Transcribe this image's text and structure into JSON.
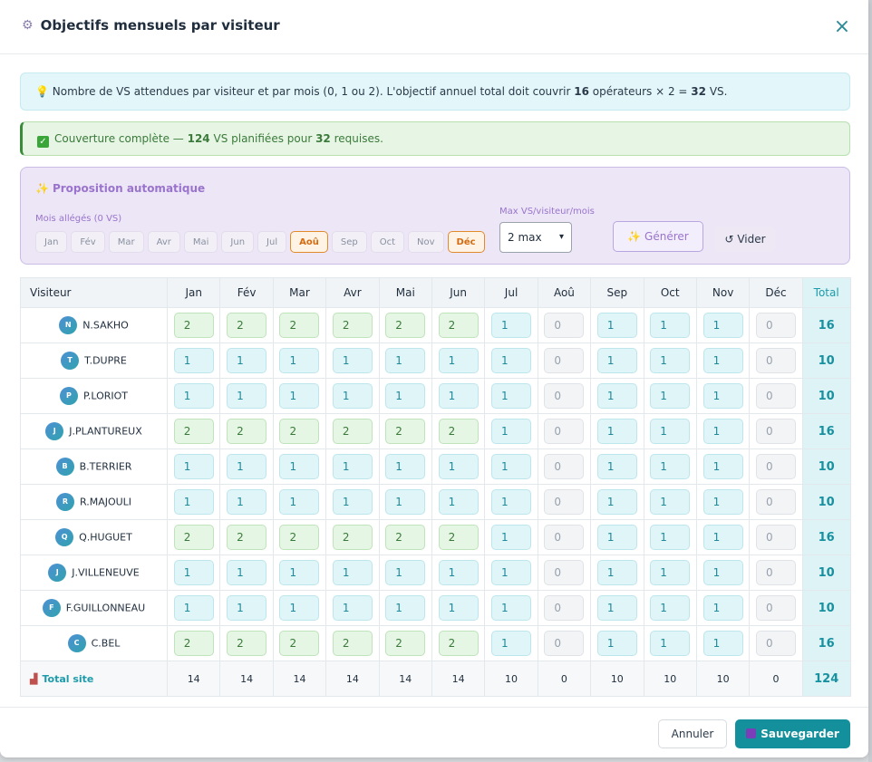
{
  "modal": {
    "title": "Objectifs mensuels par visiteur",
    "title_icon": "gear-icon",
    "close_label": "×"
  },
  "info": {
    "icon": "lightbulb-icon",
    "text_before": "Nombre de VS attendues par visiteur et par mois (0, 1 ou 2). L'objectif annuel total doit couvrir ",
    "operators": "16",
    "text_mid": " opérateurs × 2 = ",
    "required": "32",
    "text_after": " VS."
  },
  "coverage": {
    "icon": "checkmark-icon",
    "text_before": "Couverture complète — ",
    "planned": "124",
    "text_mid": " VS planifiées pour ",
    "required": "32",
    "text_after": " requises."
  },
  "auto": {
    "title": "Proposition automatique",
    "light_months_label": "Mois allégés (0 VS)",
    "months": [
      {
        "label": "Jan",
        "selected": false
      },
      {
        "label": "Fév",
        "selected": false
      },
      {
        "label": "Mar",
        "selected": false
      },
      {
        "label": "Avr",
        "selected": false
      },
      {
        "label": "Mai",
        "selected": false
      },
      {
        "label": "Jun",
        "selected": false
      },
      {
        "label": "Jul",
        "selected": false
      },
      {
        "label": "Aoû",
        "selected": true
      },
      {
        "label": "Sep",
        "selected": false
      },
      {
        "label": "Oct",
        "selected": false
      },
      {
        "label": "Nov",
        "selected": false
      },
      {
        "label": "Déc",
        "selected": true
      }
    ],
    "max_label": "Max VS/visiteur/mois",
    "max_value": "2 max",
    "generate_label": "✨ Générer",
    "clear_label": "↺ Vider"
  },
  "table": {
    "visitor_header": "Visiteur",
    "months": [
      "Jan",
      "Fév",
      "Mar",
      "Avr",
      "Mai",
      "Jun",
      "Jul",
      "Aoû",
      "Sep",
      "Oct",
      "Nov",
      "Déc"
    ],
    "total_header": "Total",
    "rows": [
      {
        "initial": "N",
        "name": "N.SAKHO",
        "values": [
          2,
          2,
          2,
          2,
          2,
          2,
          1,
          0,
          1,
          1,
          1,
          0
        ],
        "total": "16"
      },
      {
        "initial": "T",
        "name": "T.DUPRE",
        "values": [
          1,
          1,
          1,
          1,
          1,
          1,
          1,
          0,
          1,
          1,
          1,
          0
        ],
        "total": "10"
      },
      {
        "initial": "P",
        "name": "P.LORIOT",
        "values": [
          1,
          1,
          1,
          1,
          1,
          1,
          1,
          0,
          1,
          1,
          1,
          0
        ],
        "total": "10"
      },
      {
        "initial": "J",
        "name": "J.PLANTUREUX",
        "values": [
          2,
          2,
          2,
          2,
          2,
          2,
          1,
          0,
          1,
          1,
          1,
          0
        ],
        "total": "16"
      },
      {
        "initial": "B",
        "name": "B.TERRIER",
        "values": [
          1,
          1,
          1,
          1,
          1,
          1,
          1,
          0,
          1,
          1,
          1,
          0
        ],
        "total": "10"
      },
      {
        "initial": "R",
        "name": "R.MAJOULI",
        "values": [
          1,
          1,
          1,
          1,
          1,
          1,
          1,
          0,
          1,
          1,
          1,
          0
        ],
        "total": "10"
      },
      {
        "initial": "Q",
        "name": "Q.HUGUET",
        "values": [
          2,
          2,
          2,
          2,
          2,
          2,
          1,
          0,
          1,
          1,
          1,
          0
        ],
        "total": "16"
      },
      {
        "initial": "J",
        "name": "J.VILLENEUVE",
        "values": [
          1,
          1,
          1,
          1,
          1,
          1,
          1,
          0,
          1,
          1,
          1,
          0
        ],
        "total": "10"
      },
      {
        "initial": "F",
        "name": "F.GUILLONNEAU",
        "values": [
          1,
          1,
          1,
          1,
          1,
          1,
          1,
          0,
          1,
          1,
          1,
          0
        ],
        "total": "10"
      },
      {
        "initial": "C",
        "name": "C.BEL",
        "values": [
          2,
          2,
          2,
          2,
          2,
          2,
          1,
          0,
          1,
          1,
          1,
          0
        ],
        "total": "16"
      }
    ],
    "site_total_label": "Total site",
    "site_total_icon": "factory-icon",
    "site_totals": [
      "14",
      "14",
      "14",
      "14",
      "14",
      "14",
      "10",
      "0",
      "10",
      "10",
      "10",
      "0"
    ],
    "grand_total": "124"
  },
  "footer": {
    "cancel_label": "Annuler",
    "save_label": "Sauvegarder",
    "save_icon": "floppy-disk-icon"
  },
  "colors": {
    "accent": "#13909c",
    "purple": "#9a74cc",
    "orange_selected": "#e08a2c",
    "green_cell": "#e5f6e4",
    "teal_cell": "#e0f5f8"
  }
}
